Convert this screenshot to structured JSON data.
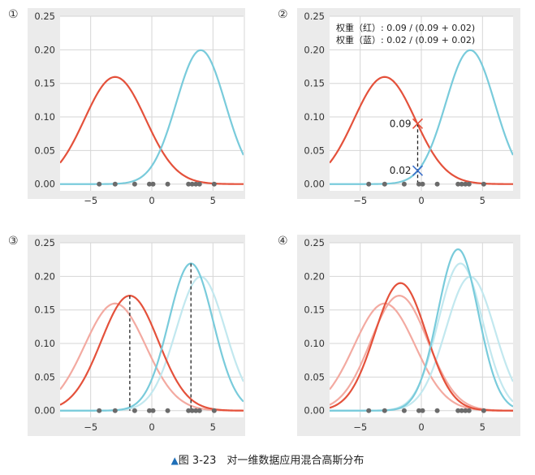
{
  "caption": {
    "marker": "▲",
    "text": "图 3-23　对一维数据应用混合高斯分布"
  },
  "colors": {
    "red": "#e4513b",
    "red_faded": "#f3aaa1",
    "blue": "#79cbdb",
    "blue_faded": "#c2e8ef",
    "panel_bg": "#ebebeb",
    "plot_bg": "#ffffff",
    "grid": "#d6d6d6",
    "points": "#6b6b6b",
    "dashed": "#222222",
    "cross_blue": "#3b6fc9"
  },
  "chart_data": [
    {
      "type": "line",
      "label": "①",
      "xlim": [
        -7.5,
        7.5
      ],
      "ylim": [
        -0.01,
        0.25
      ],
      "x_ticks": [
        -5,
        0,
        5
      ],
      "x_tick_labels": [
        "−5",
        "0",
        "5"
      ],
      "y_ticks": [
        0.0,
        0.05,
        0.1,
        0.15,
        0.2,
        0.25
      ],
      "y_tick_labels": [
        "0.00",
        "0.05",
        "0.10",
        "0.15",
        "0.20",
        "0.25"
      ],
      "grid": true,
      "series": [
        {
          "color": "red",
          "weight": 1.0,
          "mean": -3.0,
          "sd": 2.5
        },
        {
          "color": "blue",
          "weight": 1.0,
          "mean": 4.0,
          "sd": 2.0
        }
      ],
      "points": [
        -4.3,
        -3.0,
        -1.4,
        -0.2,
        0.1,
        1.3,
        3.0,
        3.3,
        3.6,
        3.9,
        5.1
      ]
    },
    {
      "type": "line",
      "label": "②",
      "xlim": [
        -7.5,
        7.5
      ],
      "ylim": [
        -0.01,
        0.25
      ],
      "x_ticks": [
        -5,
        0,
        5
      ],
      "x_tick_labels": [
        "−5",
        "0",
        "5"
      ],
      "y_ticks": [
        0.0,
        0.05,
        0.1,
        0.15,
        0.2,
        0.25
      ],
      "y_tick_labels": [
        "0.00",
        "0.05",
        "0.10",
        "0.15",
        "0.20",
        "0.25"
      ],
      "grid": true,
      "series": [
        {
          "color": "red",
          "weight": 1.0,
          "mean": -3.0,
          "sd": 2.5
        },
        {
          "color": "blue",
          "weight": 1.0,
          "mean": 4.0,
          "sd": 2.0
        }
      ],
      "points": [
        -4.3,
        -3.0,
        -1.4,
        -0.2,
        0.1,
        1.3,
        3.0,
        3.3,
        3.6,
        3.9,
        5.1
      ],
      "highlight_x": -0.3,
      "highlight_values": [
        {
          "label": "0.09",
          "y": 0.09,
          "color": "red"
        },
        {
          "label": "0.02",
          "y": 0.02,
          "color": "cross_blue"
        }
      ],
      "annotations": [
        "权重（红）: 0.09 / (0.09 + 0.02)",
        "权重（蓝）: 0.02 / (0.09 + 0.02)"
      ]
    },
    {
      "type": "line",
      "label": "③",
      "xlim": [
        -7.5,
        7.5
      ],
      "ylim": [
        -0.01,
        0.25
      ],
      "x_ticks": [
        -5,
        0,
        5
      ],
      "x_tick_labels": [
        "−5",
        "0",
        "5"
      ],
      "y_ticks": [
        0.0,
        0.05,
        0.1,
        0.15,
        0.2,
        0.25
      ],
      "y_tick_labels": [
        "0.00",
        "0.05",
        "0.10",
        "0.15",
        "0.20",
        "0.25"
      ],
      "grid": true,
      "series": [
        {
          "color": "red_faded",
          "weight": 1.0,
          "mean": -3.0,
          "sd": 2.5
        },
        {
          "color": "blue_faded",
          "weight": 1.0,
          "mean": 4.0,
          "sd": 2.0
        },
        {
          "color": "red",
          "weight": 1.0,
          "mean": -1.8,
          "sd": 2.33
        },
        {
          "color": "blue",
          "weight": 1.0,
          "mean": 3.2,
          "sd": 1.82
        }
      ],
      "points": [
        -4.3,
        -3.0,
        -1.4,
        -0.2,
        0.1,
        1.3,
        3.0,
        3.3,
        3.6,
        3.9,
        5.1
      ],
      "mean_lines": [
        -1.8,
        3.2
      ]
    },
    {
      "type": "line",
      "label": "④",
      "xlim": [
        -7.5,
        7.5
      ],
      "ylim": [
        -0.01,
        0.25
      ],
      "x_ticks": [
        -5,
        0,
        5
      ],
      "x_tick_labels": [
        "−5",
        "0",
        "5"
      ],
      "y_ticks": [
        0.0,
        0.05,
        0.1,
        0.15,
        0.2,
        0.25
      ],
      "y_tick_labels": [
        "0.00",
        "0.05",
        "0.10",
        "0.15",
        "0.20",
        "0.25"
      ],
      "grid": true,
      "series": [
        {
          "color": "red_faded",
          "weight": 1.0,
          "mean": -3.0,
          "sd": 2.5
        },
        {
          "color": "blue_faded",
          "weight": 1.0,
          "mean": 4.0,
          "sd": 2.0
        },
        {
          "color": "red_faded",
          "weight": 1.0,
          "mean": -1.8,
          "sd": 2.33
        },
        {
          "color": "blue_faded",
          "weight": 1.0,
          "mean": 3.2,
          "sd": 1.82
        },
        {
          "color": "red",
          "weight": 1.0,
          "mean": -1.7,
          "sd": 2.1
        },
        {
          "color": "blue",
          "weight": 1.0,
          "mean": 3.0,
          "sd": 1.66
        }
      ],
      "points": [
        -4.3,
        -3.0,
        -1.4,
        -0.2,
        0.1,
        1.3,
        3.0,
        3.3,
        3.6,
        3.9,
        5.1
      ]
    }
  ]
}
